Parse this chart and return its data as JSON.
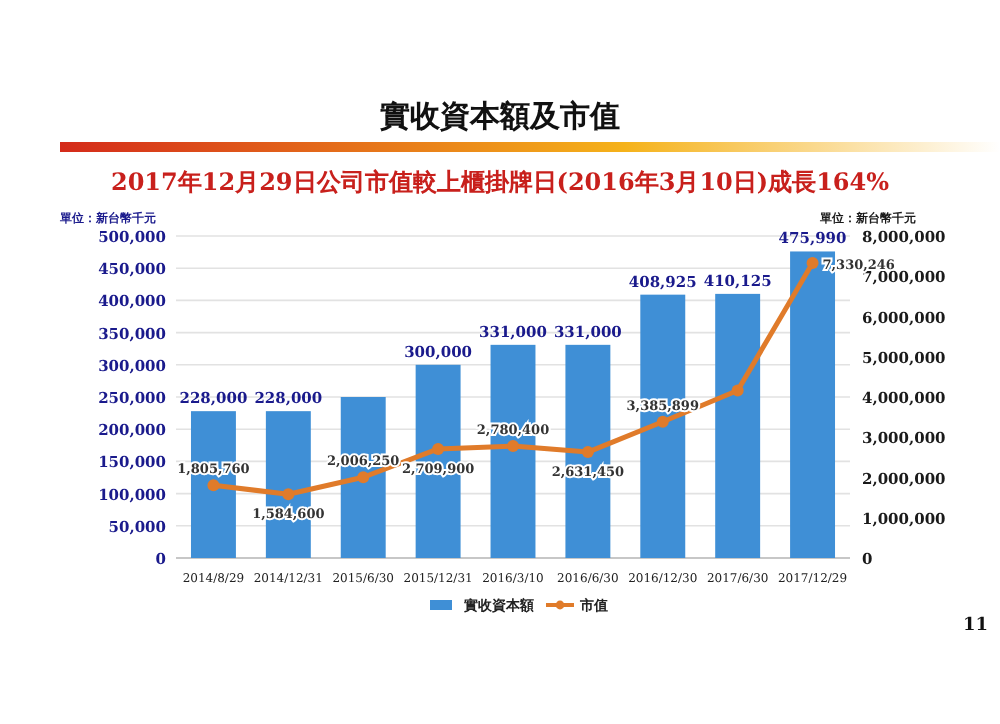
{
  "chart_data": {
    "type": "bar",
    "title": "實收資本額及市值",
    "subtitle": "2017年12月29日公司市值較上櫃掛牌日(2016年3月10日)成長164%",
    "categories": [
      "2014/8/29",
      "2014/12/31",
      "2015/6/30",
      "2015/12/31",
      "2016/3/10",
      "2016/6/30",
      "2016/12/30",
      "2017/6/30",
      "2017/12/29"
    ],
    "series": [
      {
        "name": "實收資本額",
        "color": "#3f8fd6",
        "values": [
          228000,
          228000,
          250000,
          300000,
          331000,
          331000,
          408925,
          410125,
          475990
        ],
        "value_labels": [
          "228,000",
          "228,000",
          null,
          "300,000",
          "331,000",
          "331,000",
          "408,925",
          "410,125",
          "475,990"
        ]
      },
      {
        "name": "市值",
        "type": "line",
        "axis": "y2",
        "color": "#e07b2a",
        "marker": "circle",
        "values": [
          1805760,
          1584600,
          2006250,
          2709900,
          2780400,
          2631450,
          3385899,
          4160000,
          7330246
        ],
        "value_labels": [
          "1,805,760",
          "1,584,600",
          "2,006,250",
          "2,709,900",
          "2,780,400",
          "2,631,450",
          "3,385,899",
          null,
          "7,330,246"
        ]
      }
    ],
    "ylim": [
      0,
      500000
    ],
    "yticks": [
      {
        "value": 0,
        "label": "0"
      },
      {
        "value": 50000,
        "label": "50,000"
      },
      {
        "value": 100000,
        "label": "100,000"
      },
      {
        "value": 150000,
        "label": "150,000"
      },
      {
        "value": 200000,
        "label": "200,000"
      },
      {
        "value": 250000,
        "label": "250,000"
      },
      {
        "value": 300000,
        "label": "300,000"
      },
      {
        "value": 350000,
        "label": "350,000"
      },
      {
        "value": 400000,
        "label": "400,000"
      },
      {
        "value": 450000,
        "label": "450,000"
      },
      {
        "value": 500000,
        "label": "500,000"
      }
    ],
    "y2lim": [
      0,
      8000000
    ],
    "y2ticks": [
      {
        "value": 0,
        "label": "0"
      },
      {
        "value": 1000000,
        "label": "1,000,000"
      },
      {
        "value": 2000000,
        "label": "2,000,000"
      },
      {
        "value": 3000000,
        "label": "3,000,000"
      },
      {
        "value": 4000000,
        "label": "4,000,000"
      },
      {
        "value": 5000000,
        "label": "5,000,000"
      },
      {
        "value": 6000000,
        "label": "6,000,000"
      },
      {
        "value": 7000000,
        "label": "7,000,000"
      },
      {
        "value": 8000000,
        "label": "8,000,000"
      }
    ],
    "grid": "y",
    "legend": "bottom",
    "annotations": [
      "單位：新台幣千元",
      "單位：新台幣千元",
      "11"
    ]
  }
}
